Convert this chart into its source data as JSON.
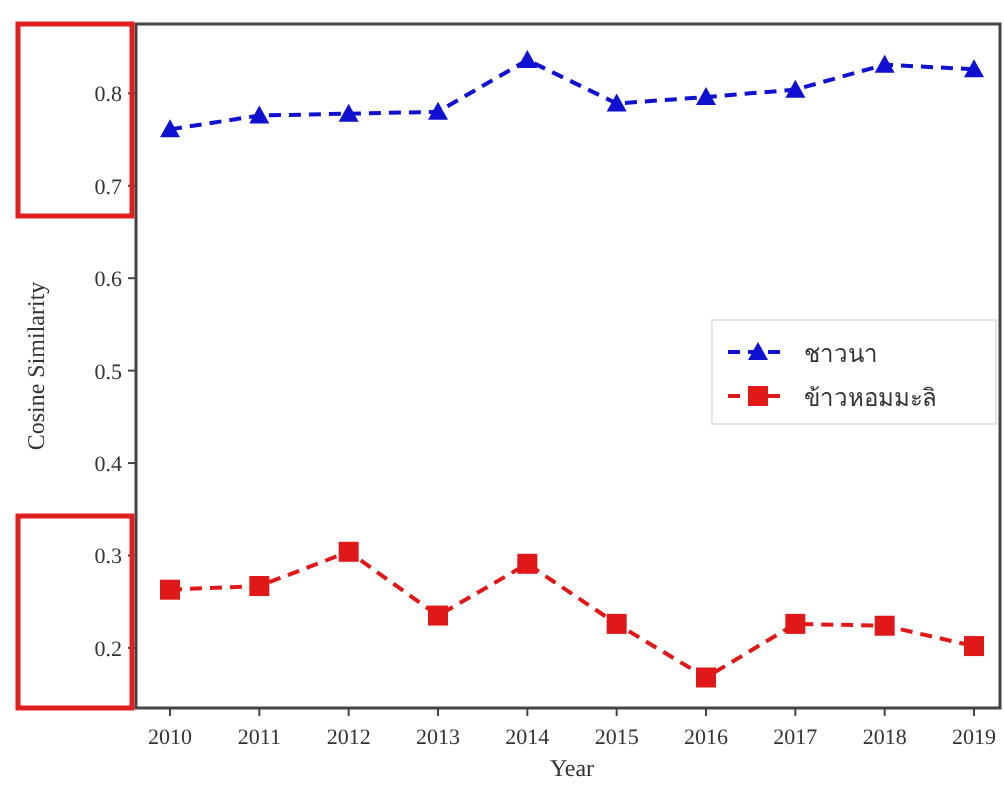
{
  "chart_data": {
    "type": "line",
    "xlabel": "Year",
    "ylabel": "Cosine Similarity",
    "categories": [
      "2010",
      "2011",
      "2012",
      "2013",
      "2014",
      "2015",
      "2016",
      "2017",
      "2018",
      "2019"
    ],
    "series": [
      {
        "name": "ชาวนา",
        "color": "#1010d0",
        "marker": "triangle",
        "values": [
          0.761,
          0.776,
          0.778,
          0.78,
          0.836,
          0.789,
          0.796,
          0.804,
          0.831,
          0.826
        ]
      },
      {
        "name": "ข้าวหอมมะลิ",
        "color": "#e01818",
        "marker": "square",
        "values": [
          0.263,
          0.267,
          0.304,
          0.235,
          0.291,
          0.226,
          0.168,
          0.226,
          0.224,
          0.202
        ]
      }
    ],
    "ylim": [
      0.135,
      0.875
    ],
    "yticks": [
      0.2,
      0.3,
      0.4,
      0.5,
      0.6,
      0.7,
      0.8
    ],
    "line_style": "dashed",
    "grid": false,
    "legend": "right"
  }
}
